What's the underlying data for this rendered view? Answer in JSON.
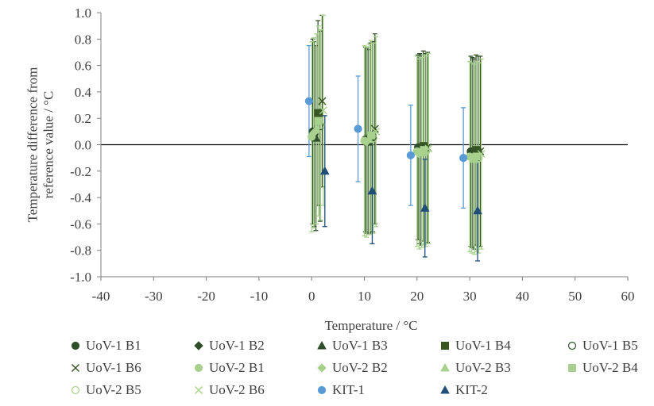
{
  "chart_data": {
    "type": "scatter",
    "xlabel": "Temperature / °C",
    "ylabel": "Temperature difference from reference value / °C",
    "xlim": [
      -40,
      60
    ],
    "ylim": [
      -1.0,
      1.0
    ],
    "xticks": [
      "-40",
      "-30",
      "-20",
      "-10",
      "0",
      "10",
      "20",
      "30",
      "40",
      "50",
      "60"
    ],
    "yticks": [
      "1.0",
      "0.8",
      "0.6",
      "0.4",
      "0.2",
      "0.0",
      "-0.2",
      "-0.4",
      "-0.6",
      "-0.8",
      "-1.0"
    ],
    "grid": false,
    "legend_position": "bottom",
    "series": [
      {
        "name": "UoV-1 B1",
        "marker": "circle",
        "filled": true,
        "color": "#2f4f2a",
        "points": [
          {
            "x": 0.2,
            "y": 0.1,
            "err": 0.7
          },
          {
            "x": 10.2,
            "y": 0.04,
            "err": 0.7
          },
          {
            "x": 20.2,
            "y": -0.02,
            "err": 0.7
          },
          {
            "x": 30.2,
            "y": -0.05,
            "err": 0.72
          }
        ]
      },
      {
        "name": "UoV-1 B2",
        "marker": "diamond",
        "filled": true,
        "color": "#2f4f2a",
        "points": [
          {
            "x": 0.5,
            "y": 0.08,
            "err": 0.7
          },
          {
            "x": 10.5,
            "y": 0.03,
            "err": 0.7
          },
          {
            "x": 20.5,
            "y": -0.03,
            "err": 0.72
          },
          {
            "x": 30.5,
            "y": -0.06,
            "err": 0.72
          }
        ]
      },
      {
        "name": "UoV-1 B3",
        "marker": "triangle",
        "filled": true,
        "color": "#2f4f2a",
        "points": [
          {
            "x": 0.8,
            "y": 0.05,
            "err": 0.7
          },
          {
            "x": 10.8,
            "y": 0.02,
            "err": 0.7
          },
          {
            "x": 20.8,
            "y": -0.04,
            "err": 0.72
          },
          {
            "x": 30.8,
            "y": -0.07,
            "err": 0.72
          }
        ]
      },
      {
        "name": "UoV-1 B4",
        "marker": "square",
        "filled": true,
        "color": "#375623",
        "points": [
          {
            "x": 1.2,
            "y": 0.24,
            "err": 0.7
          },
          {
            "x": 11.2,
            "y": 0.05,
            "err": 0.72
          },
          {
            "x": 21.2,
            "y": -0.01,
            "err": 0.72
          },
          {
            "x": 31.2,
            "y": -0.04,
            "err": 0.72
          }
        ]
      },
      {
        "name": "UoV-1 B5",
        "marker": "circle",
        "filled": false,
        "color": "#2f4f2a",
        "points": [
          {
            "x": 1.6,
            "y": 0.14,
            "err": 0.72
          },
          {
            "x": 11.6,
            "y": 0.06,
            "err": 0.72
          },
          {
            "x": 21.6,
            "y": -0.03,
            "err": 0.72
          },
          {
            "x": 31.6,
            "y": -0.05,
            "err": 0.72
          }
        ]
      },
      {
        "name": "UoV-1 B6",
        "marker": "x",
        "filled": false,
        "color": "#375623",
        "points": [
          {
            "x": 2.0,
            "y": 0.33,
            "err": 0.65
          },
          {
            "x": 12.0,
            "y": 0.12,
            "err": 0.72
          },
          {
            "x": 22.0,
            "y": -0.02,
            "err": 0.72
          },
          {
            "x": 32.0,
            "y": -0.05,
            "err": 0.72
          }
        ]
      },
      {
        "name": "UoV-2 B1",
        "marker": "circle",
        "filled": true,
        "color": "#a9d18e",
        "points": [
          {
            "x": 0.0,
            "y": 0.06,
            "err": 0.72
          },
          {
            "x": 10.0,
            "y": 0.03,
            "err": 0.72
          },
          {
            "x": 20.0,
            "y": -0.05,
            "err": 0.72
          },
          {
            "x": 30.0,
            "y": -0.09,
            "err": 0.72
          }
        ]
      },
      {
        "name": "UoV-2 B2",
        "marker": "diamond",
        "filled": true,
        "color": "#a9d18e",
        "points": [
          {
            "x": 0.4,
            "y": 0.09,
            "err": 0.72
          },
          {
            "x": 10.4,
            "y": 0.02,
            "err": 0.72
          },
          {
            "x": 20.4,
            "y": -0.07,
            "err": 0.72
          },
          {
            "x": 30.4,
            "y": -0.1,
            "err": 0.72
          }
        ]
      },
      {
        "name": "UoV-2 B3",
        "marker": "triangle",
        "filled": true,
        "color": "#a9d18e",
        "points": [
          {
            "x": 0.9,
            "y": 0.12,
            "err": 0.72
          },
          {
            "x": 10.9,
            "y": 0.04,
            "err": 0.72
          },
          {
            "x": 20.9,
            "y": -0.06,
            "err": 0.72
          },
          {
            "x": 30.9,
            "y": -0.11,
            "err": 0.72
          }
        ]
      },
      {
        "name": "UoV-2 B4",
        "marker": "square",
        "filled": true,
        "color": "#a9d18e",
        "points": [
          {
            "x": 1.3,
            "y": 0.18,
            "err": 0.72
          },
          {
            "x": 11.3,
            "y": 0.07,
            "err": 0.72
          },
          {
            "x": 21.3,
            "y": -0.04,
            "err": 0.72
          },
          {
            "x": 31.3,
            "y": -0.09,
            "err": 0.72
          }
        ]
      },
      {
        "name": "UoV-2 B5",
        "marker": "circle",
        "filled": false,
        "color": "#a9d18e",
        "points": [
          {
            "x": 1.7,
            "y": 0.15,
            "err": 0.72
          },
          {
            "x": 11.7,
            "y": 0.05,
            "err": 0.72
          },
          {
            "x": 21.7,
            "y": -0.05,
            "err": 0.72
          },
          {
            "x": 31.7,
            "y": -0.1,
            "err": 0.72
          }
        ]
      },
      {
        "name": "UoV-2 B6",
        "marker": "x",
        "filled": false,
        "color": "#a9d18e",
        "points": [
          {
            "x": 2.2,
            "y": 0.26,
            "err": 0.72
          },
          {
            "x": 12.2,
            "y": 0.1,
            "err": 0.72
          },
          {
            "x": 22.2,
            "y": -0.03,
            "err": 0.72
          },
          {
            "x": 32.2,
            "y": -0.07,
            "err": 0.72
          }
        ]
      },
      {
        "name": "KIT-1",
        "marker": "circle",
        "filled": true,
        "color": "#5b9bd5",
        "points": [
          {
            "x": -0.5,
            "y": 0.33,
            "err": 0.42
          },
          {
            "x": 8.8,
            "y": 0.12,
            "err": 0.4
          },
          {
            "x": 18.8,
            "y": -0.08,
            "err": 0.38
          },
          {
            "x": 28.8,
            "y": -0.1,
            "err": 0.38
          }
        ]
      },
      {
        "name": "KIT-2",
        "marker": "triangle",
        "filled": true,
        "color": "#1f4e79",
        "points": [
          {
            "x": 2.5,
            "y": -0.2,
            "err": 0.42
          },
          {
            "x": 11.5,
            "y": -0.35,
            "err": 0.4
          },
          {
            "x": 21.5,
            "y": -0.48,
            "err": 0.37
          },
          {
            "x": 31.5,
            "y": -0.5,
            "err": 0.38
          }
        ]
      }
    ]
  }
}
